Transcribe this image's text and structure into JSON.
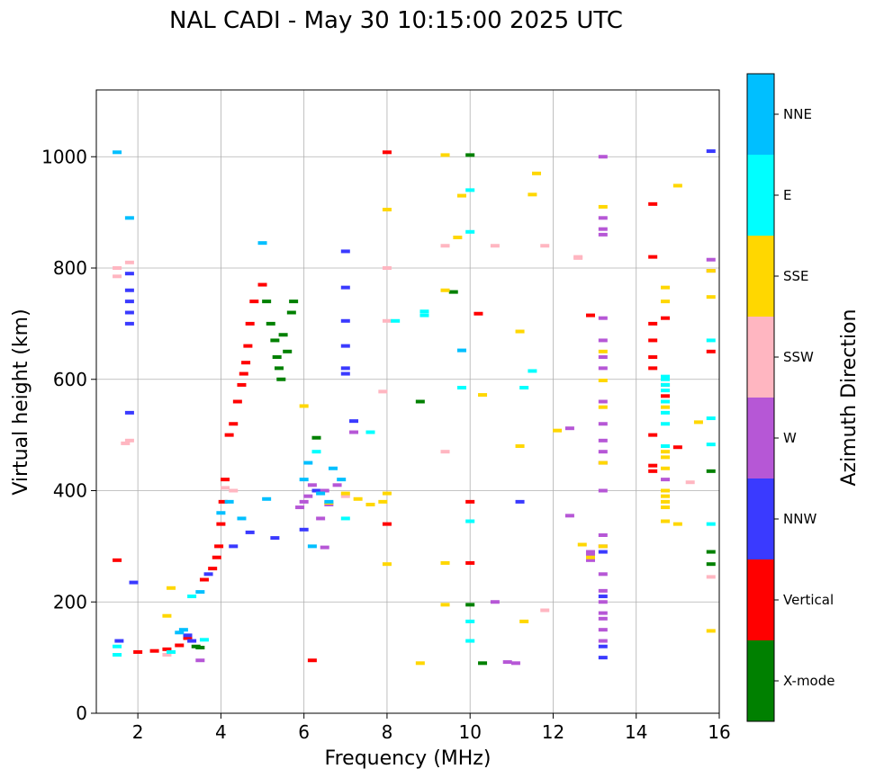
{
  "chart_data": {
    "type": "scatter",
    "title": "NAL CADI - May 30 10:15:00 2025 UTC",
    "xlabel": "Frequency (MHz)",
    "ylabel": "Virtual height (km)",
    "xlim": [
      1,
      16
    ],
    "ylim": [
      0,
      1120
    ],
    "xticks": [
      2,
      4,
      6,
      8,
      10,
      12,
      14,
      16
    ],
    "yticks": [
      0,
      200,
      400,
      600,
      800,
      1000
    ],
    "grid": true,
    "colorbar": {
      "label": "Azimuth Direction",
      "categories": [
        {
          "name": "X-mode",
          "color": "#008000"
        },
        {
          "name": "Vertical",
          "color": "#ff0000"
        },
        {
          "name": "NNW",
          "color": "#3a3aff"
        },
        {
          "name": "W",
          "color": "#b657d6"
        },
        {
          "name": "SSW",
          "color": "#ffb6c1"
        },
        {
          "name": "SSE",
          "color": "#ffd700"
        },
        {
          "name": "E",
          "color": "#00ffff"
        },
        {
          "name": "NNE",
          "color": "#00bfff"
        }
      ]
    },
    "series": [
      {
        "name": "Vertical",
        "color": "#ff0000",
        "points": [
          [
            1.5,
            275
          ],
          [
            2.0,
            110
          ],
          [
            2.4,
            112
          ],
          [
            2.7,
            115
          ],
          [
            3.0,
            122
          ],
          [
            3.2,
            135
          ],
          [
            3.6,
            240
          ],
          [
            3.8,
            260
          ],
          [
            3.9,
            280
          ],
          [
            3.95,
            300
          ],
          [
            4.0,
            340
          ],
          [
            4.05,
            380
          ],
          [
            4.1,
            420
          ],
          [
            4.2,
            500
          ],
          [
            4.3,
            520
          ],
          [
            4.4,
            560
          ],
          [
            4.5,
            590
          ],
          [
            4.55,
            610
          ],
          [
            4.6,
            630
          ],
          [
            4.65,
            660
          ],
          [
            4.7,
            700
          ],
          [
            4.8,
            740
          ],
          [
            5.0,
            770
          ],
          [
            6.2,
            95
          ],
          [
            8.0,
            340
          ],
          [
            8.0,
            1008
          ],
          [
            10.0,
            380
          ],
          [
            10.0,
            270
          ],
          [
            10.2,
            718
          ],
          [
            12.9,
            715
          ],
          [
            14.4,
            915
          ],
          [
            14.4,
            820
          ],
          [
            14.4,
            700
          ],
          [
            14.4,
            670
          ],
          [
            14.4,
            640
          ],
          [
            14.4,
            620
          ],
          [
            14.4,
            500
          ],
          [
            14.4,
            445
          ],
          [
            14.4,
            435
          ],
          [
            14.7,
            710
          ],
          [
            14.7,
            590
          ],
          [
            14.7,
            570
          ],
          [
            15.0,
            478
          ],
          [
            15.8,
            650
          ]
        ]
      },
      {
        "name": "X-mode",
        "color": "#008000",
        "points": [
          [
            3.4,
            120
          ],
          [
            3.5,
            118
          ],
          [
            5.1,
            740
          ],
          [
            5.2,
            700
          ],
          [
            5.3,
            670
          ],
          [
            5.35,
            640
          ],
          [
            5.4,
            620
          ],
          [
            5.45,
            600
          ],
          [
            5.5,
            680
          ],
          [
            5.6,
            650
          ],
          [
            5.7,
            720
          ],
          [
            5.75,
            740
          ],
          [
            6.3,
            495
          ],
          [
            8.8,
            560
          ],
          [
            9.6,
            757
          ],
          [
            10.0,
            1003
          ],
          [
            10.0,
            195
          ],
          [
            10.3,
            90
          ],
          [
            15.8,
            290
          ],
          [
            15.8,
            268
          ],
          [
            15.8,
            435
          ]
        ]
      },
      {
        "name": "NNW",
        "color": "#3a3aff",
        "points": [
          [
            1.55,
            130
          ],
          [
            1.8,
            790
          ],
          [
            1.8,
            760
          ],
          [
            1.8,
            740
          ],
          [
            1.8,
            720
          ],
          [
            1.8,
            700
          ],
          [
            1.8,
            540
          ],
          [
            1.9,
            235
          ],
          [
            3.2,
            140
          ],
          [
            3.3,
            130
          ],
          [
            3.7,
            250
          ],
          [
            4.3,
            300
          ],
          [
            4.7,
            325
          ],
          [
            5.3,
            315
          ],
          [
            6.0,
            330
          ],
          [
            6.3,
            400
          ],
          [
            7.0,
            830
          ],
          [
            7.0,
            765
          ],
          [
            7.0,
            705
          ],
          [
            7.0,
            660
          ],
          [
            7.0,
            620
          ],
          [
            7.0,
            610
          ],
          [
            7.2,
            525
          ],
          [
            11.2,
            380
          ],
          [
            13.2,
            290
          ],
          [
            13.2,
            210
          ],
          [
            13.2,
            120
          ],
          [
            13.2,
            100
          ],
          [
            15.8,
            1010
          ]
        ]
      },
      {
        "name": "W",
        "color": "#b657d6",
        "points": [
          [
            3.5,
            95
          ],
          [
            5.9,
            370
          ],
          [
            6.0,
            380
          ],
          [
            6.1,
            390
          ],
          [
            6.2,
            410
          ],
          [
            6.4,
            350
          ],
          [
            6.5,
            400
          ],
          [
            6.6,
            375
          ],
          [
            6.5,
            298
          ],
          [
            6.8,
            410
          ],
          [
            7.2,
            505
          ],
          [
            10.6,
            200
          ],
          [
            10.9,
            92
          ],
          [
            11.1,
            90
          ],
          [
            12.4,
            355
          ],
          [
            12.4,
            512
          ],
          [
            12.9,
            290
          ],
          [
            12.9,
            275
          ],
          [
            12.9,
            285
          ],
          [
            13.2,
            1000
          ],
          [
            13.2,
            890
          ],
          [
            13.2,
            870
          ],
          [
            13.2,
            860
          ],
          [
            13.2,
            710
          ],
          [
            13.2,
            670
          ],
          [
            13.2,
            640
          ],
          [
            13.2,
            620
          ],
          [
            13.2,
            560
          ],
          [
            13.2,
            520
          ],
          [
            13.2,
            490
          ],
          [
            13.2,
            470
          ],
          [
            13.2,
            450
          ],
          [
            13.2,
            400
          ],
          [
            13.2,
            320
          ],
          [
            13.2,
            300
          ],
          [
            13.2,
            250
          ],
          [
            13.2,
            220
          ],
          [
            13.2,
            200
          ],
          [
            13.2,
            180
          ],
          [
            13.2,
            170
          ],
          [
            13.2,
            150
          ],
          [
            13.2,
            130
          ],
          [
            14.7,
            420
          ],
          [
            15.8,
            815
          ],
          [
            15.8,
            795
          ]
        ]
      },
      {
        "name": "SSW",
        "color": "#ffb6c1",
        "points": [
          [
            1.5,
            800
          ],
          [
            1.5,
            785
          ],
          [
            1.7,
            485
          ],
          [
            1.8,
            810
          ],
          [
            1.8,
            490
          ],
          [
            2.7,
            105
          ],
          [
            4.1,
            405
          ],
          [
            4.3,
            400
          ],
          [
            7.0,
            390
          ],
          [
            7.9,
            578
          ],
          [
            8.0,
            800
          ],
          [
            8.0,
            705
          ],
          [
            9.4,
            840
          ],
          [
            9.4,
            470
          ],
          [
            10.6,
            840
          ],
          [
            11.8,
            840
          ],
          [
            11.8,
            185
          ],
          [
            12.6,
            820
          ],
          [
            12.6,
            818
          ],
          [
            15.3,
            415
          ],
          [
            15.8,
            245
          ]
        ]
      },
      {
        "name": "SSE",
        "color": "#ffd700",
        "points": [
          [
            2.7,
            175
          ],
          [
            2.8,
            225
          ],
          [
            6.0,
            552
          ],
          [
            6.6,
            378
          ],
          [
            7.0,
            395
          ],
          [
            7.3,
            385
          ],
          [
            7.6,
            375
          ],
          [
            7.9,
            380
          ],
          [
            8.0,
            395
          ],
          [
            8.0,
            905
          ],
          [
            8.0,
            268
          ],
          [
            8.8,
            90
          ],
          [
            9.4,
            1003
          ],
          [
            9.4,
            760
          ],
          [
            9.4,
            270
          ],
          [
            9.4,
            195
          ],
          [
            9.7,
            855
          ],
          [
            9.8,
            930
          ],
          [
            10.3,
            572
          ],
          [
            11.2,
            686
          ],
          [
            11.2,
            480
          ],
          [
            11.3,
            165
          ],
          [
            11.5,
            932
          ],
          [
            11.6,
            970
          ],
          [
            12.1,
            508
          ],
          [
            12.7,
            303
          ],
          [
            12.9,
            280
          ],
          [
            13.2,
            910
          ],
          [
            13.2,
            650
          ],
          [
            13.2,
            598
          ],
          [
            13.2,
            550
          ],
          [
            13.2,
            450
          ],
          [
            13.2,
            300
          ],
          [
            14.7,
            765
          ],
          [
            14.7,
            740
          ],
          [
            14.7,
            550
          ],
          [
            14.7,
            470
          ],
          [
            14.7,
            460
          ],
          [
            14.7,
            440
          ],
          [
            14.7,
            400
          ],
          [
            14.7,
            390
          ],
          [
            14.7,
            380
          ],
          [
            14.7,
            370
          ],
          [
            14.7,
            345
          ],
          [
            15.0,
            948
          ],
          [
            15.0,
            340
          ],
          [
            15.5,
            523
          ],
          [
            15.8,
            795
          ],
          [
            15.8,
            748
          ],
          [
            15.8,
            148
          ]
        ]
      },
      {
        "name": "E",
        "color": "#00ffff",
        "points": [
          [
            1.5,
            120
          ],
          [
            1.5,
            105
          ],
          [
            2.8,
            110
          ],
          [
            3.3,
            210
          ],
          [
            3.6,
            132
          ],
          [
            6.3,
            470
          ],
          [
            7.0,
            350
          ],
          [
            7.6,
            505
          ],
          [
            8.2,
            705
          ],
          [
            8.9,
            722
          ],
          [
            8.9,
            715
          ],
          [
            9.8,
            585
          ],
          [
            10.0,
            940
          ],
          [
            10.0,
            865
          ],
          [
            10.0,
            345
          ],
          [
            10.0,
            165
          ],
          [
            10.0,
            130
          ],
          [
            11.3,
            585
          ],
          [
            11.5,
            615
          ],
          [
            14.7,
            605
          ],
          [
            14.7,
            600
          ],
          [
            14.7,
            590
          ],
          [
            14.7,
            580
          ],
          [
            14.7,
            560
          ],
          [
            14.7,
            540
          ],
          [
            14.7,
            520
          ],
          [
            14.7,
            480
          ],
          [
            15.8,
            670
          ],
          [
            15.8,
            530
          ],
          [
            15.8,
            483
          ],
          [
            15.8,
            340
          ]
        ]
      },
      {
        "name": "NNE",
        "color": "#00bfff",
        "points": [
          [
            1.5,
            1008
          ],
          [
            1.8,
            890
          ],
          [
            3.0,
            145
          ],
          [
            3.1,
            150
          ],
          [
            3.5,
            218
          ],
          [
            4.0,
            360
          ],
          [
            4.2,
            380
          ],
          [
            4.5,
            350
          ],
          [
            5.0,
            845
          ],
          [
            5.1,
            385
          ],
          [
            6.0,
            420
          ],
          [
            6.1,
            450
          ],
          [
            6.2,
            300
          ],
          [
            6.4,
            395
          ],
          [
            6.6,
            380
          ],
          [
            6.7,
            440
          ],
          [
            6.9,
            420
          ],
          [
            9.8,
            652
          ]
        ]
      }
    ]
  }
}
